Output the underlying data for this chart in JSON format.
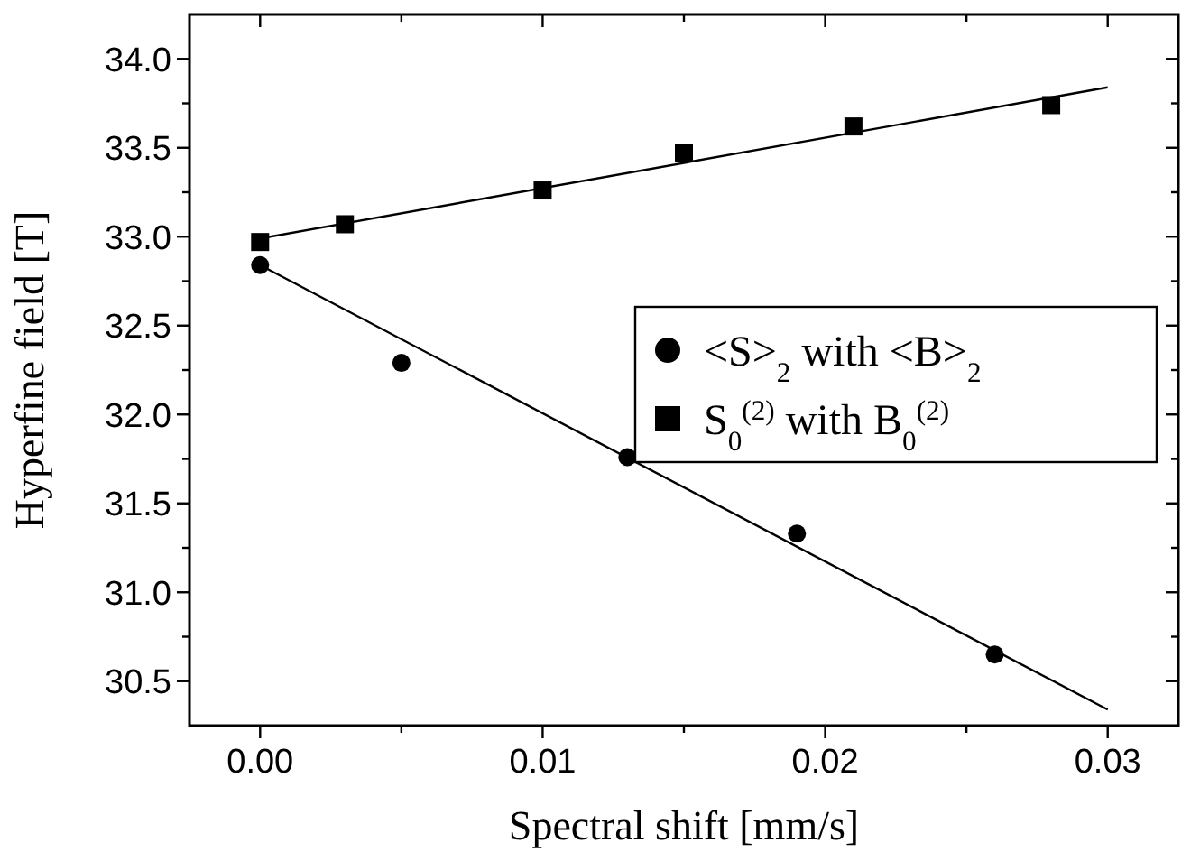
{
  "chart_data": {
    "type": "scatter",
    "xlabel": "Spectral shift [mm/s]",
    "ylabel": "Hyperfine field [T]",
    "xlim": [
      -0.0025,
      0.0325
    ],
    "ylim": [
      30.25,
      34.25
    ],
    "xticks": [
      {
        "value": 0,
        "label": "0.00"
      },
      {
        "value": 0.005,
        "label": null
      },
      {
        "value": 0.01,
        "label": "0.01"
      },
      {
        "value": 0.015,
        "label": null
      },
      {
        "value": 0.02,
        "label": "0.02"
      },
      {
        "value": 0.025,
        "label": null
      },
      {
        "value": 0.03,
        "label": "0.03"
      }
    ],
    "yticks": [
      {
        "value": 30.5,
        "label": "30.5"
      },
      {
        "value": 30.75,
        "label": null
      },
      {
        "value": 31,
        "label": "31.0"
      },
      {
        "value": 31.25,
        "label": null
      },
      {
        "value": 31.5,
        "label": "31.5"
      },
      {
        "value": 31.75,
        "label": null
      },
      {
        "value": 32,
        "label": "32.0"
      },
      {
        "value": 32.25,
        "label": null
      },
      {
        "value": 32.5,
        "label": "32.5"
      },
      {
        "value": 32.75,
        "label": null
      },
      {
        "value": 33,
        "label": "33.0"
      },
      {
        "value": 33.25,
        "label": null
      },
      {
        "value": 33.5,
        "label": "33.5"
      },
      {
        "value": 33.75,
        "label": null
      },
      {
        "value": 34,
        "label": "34.0"
      }
    ],
    "grid": false,
    "legend": "right",
    "series": [
      {
        "name": "<S>$_{2}$ with <B>$_{2}$",
        "color": "#000000",
        "marker": "circle",
        "x": [
          0,
          0.005,
          0.013,
          0.019,
          0.026
        ],
        "values": [
          32.84,
          32.29,
          31.76,
          31.33,
          30.65
        ]
      },
      {
        "name": "S$_{0}$$^{(2)}$ with  B$_{0}$$^{(2)}$",
        "color": "#000000",
        "marker": "square",
        "x": [
          0,
          0.003,
          0.01,
          0.015,
          0.021,
          0.028
        ],
        "values": [
          32.97,
          33.07,
          33.26,
          33.47,
          33.62,
          33.74
        ]
      },
      {
        "type": "line",
        "color": "#000000",
        "marker": "none",
        "line_style": "solid",
        "x": [
          0,
          0.03
        ],
        "values": [
          32.84,
          30.34
        ]
      },
      {
        "type": "line",
        "color": "#000000",
        "marker": "none",
        "line_style": "solid",
        "x": [
          0,
          0.03
        ],
        "values": [
          32.99,
          33.84
        ]
      }
    ]
  }
}
